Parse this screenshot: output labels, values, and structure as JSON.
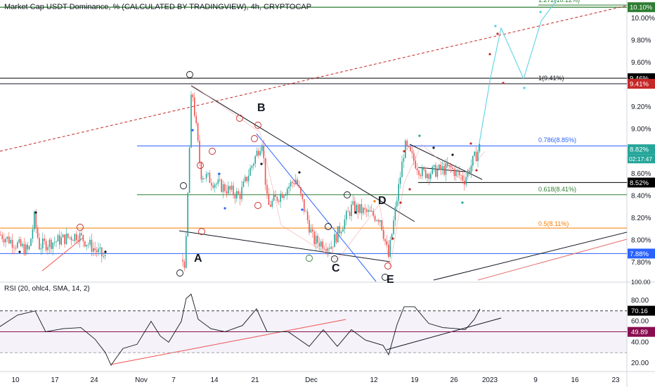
{
  "chart_data": {
    "type": "candlestick",
    "title": "Market Cap USDT Dominance, % (CALCULATED BY TRADINGVIEW), 4h, CRYPTOCAP",
    "y_ticks": [
      "10.00%",
      "9.80%",
      "9.60%",
      "9.40%",
      "9.20%",
      "9.00%",
      "8.80%",
      "8.60%",
      "8.40%",
      "8.20%",
      "8.00%",
      "7.80%"
    ],
    "y_ticks_value": [
      10.0,
      9.8,
      9.6,
      9.4,
      9.2,
      9.0,
      8.8,
      8.6,
      8.4,
      8.2,
      8.0,
      7.8
    ],
    "x_ticks": [
      "10",
      "17",
      "24",
      "Nov",
      "7",
      "14",
      "21",
      "Dec",
      "12",
      "19",
      "26",
      "2023",
      "9",
      "16",
      "23"
    ],
    "price_badges": [
      {
        "label": "10.10%",
        "value": 10.1,
        "color": "#2e7d32"
      },
      {
        "label": "9.46%",
        "value": 9.46,
        "color": "#000000"
      },
      {
        "label": "9.41%",
        "value": 9.41,
        "color": "#c62828"
      },
      {
        "label": "8.82%",
        "value": 8.82,
        "color": "#26a69a",
        "time": "02:17:47"
      },
      {
        "label": "8.52%",
        "value": 8.52,
        "color": "#000000"
      },
      {
        "label": "7.88%",
        "value": 7.88,
        "color": "#2962ff"
      }
    ],
    "fib_levels": [
      {
        "label": "1.272(10.12%)",
        "value": 10.12,
        "color": "#2e7d32"
      },
      {
        "label": "1(9.41%)",
        "value": 9.41,
        "color": "#131722"
      },
      {
        "label": "0.786(8.85%)",
        "value": 8.85,
        "color": "#2962ff"
      },
      {
        "label": "0.618(8.41%)",
        "value": 8.41,
        "color": "#2e7d32"
      },
      {
        "label": "0.5(8.11%)",
        "value": 8.11,
        "color": "#f57c00"
      }
    ],
    "wave_labels_large": [
      "A",
      "B",
      "C",
      "D",
      "E"
    ],
    "rsi": {
      "title": "RSI (20, ohlc4, SMA, 14, 2)",
      "y_ticks": [
        "80.00",
        "60.00",
        "40.00",
        "20.00"
      ],
      "y_ticks_value": [
        80,
        60,
        40,
        20
      ],
      "badges": [
        {
          "label": "70.16",
          "value": 70.16,
          "color": "#000000"
        },
        {
          "label": "49.89",
          "value": 49.89,
          "color": "#880e4f"
        }
      ],
      "top_axis_label": "100.00"
    }
  }
}
